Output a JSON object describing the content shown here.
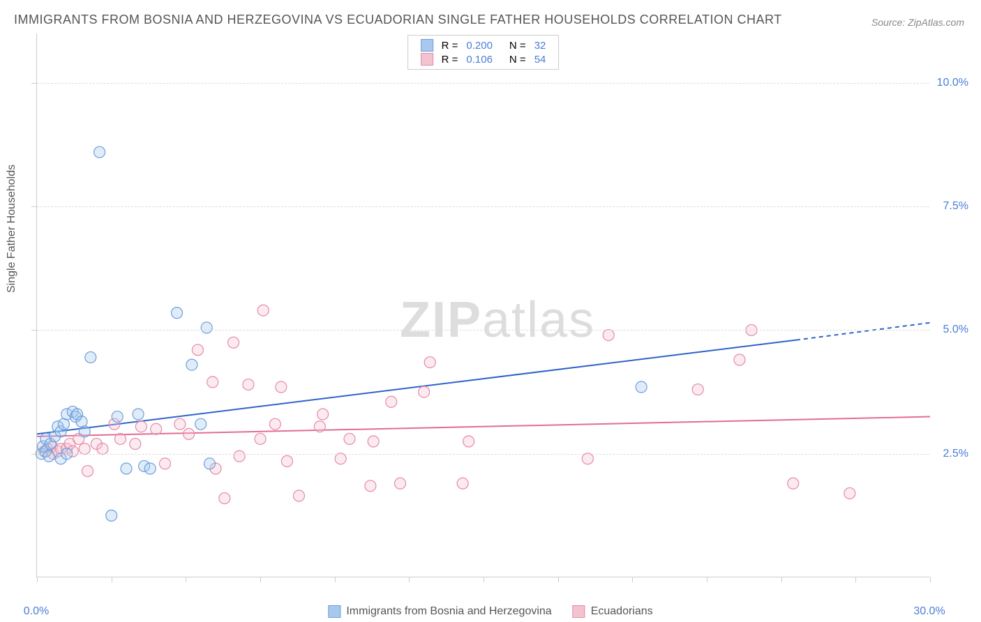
{
  "title": "IMMIGRANTS FROM BOSNIA AND HERZEGOVINA VS ECUADORIAN SINGLE FATHER HOUSEHOLDS CORRELATION CHART",
  "source": "Source: ZipAtlas.com",
  "y_axis_label": "Single Father Households",
  "watermark_bold": "ZIP",
  "watermark_light": "atlas",
  "chart": {
    "type": "scatter",
    "xlim": [
      0,
      30
    ],
    "ylim": [
      0,
      11
    ],
    "x_ticks": [
      0,
      2.5,
      5,
      7.5,
      10,
      12.5,
      15,
      17.5,
      20,
      22.5,
      25,
      27.5,
      30
    ],
    "x_tick_labels": {
      "0": "0.0%",
      "30": "30.0%"
    },
    "y_ticks": [
      2.5,
      5.0,
      7.5,
      10.0
    ],
    "y_tick_labels": {
      "2.5": "2.5%",
      "5.0": "5.0%",
      "7.5": "7.5%",
      "10.0": "10.0%"
    },
    "grid_color": "#dddddd",
    "axis_color": "#cccccc",
    "background_color": "#ffffff",
    "marker_radius": 8,
    "marker_stroke_width": 1.2,
    "marker_fill_opacity": 0.35,
    "line_width": 2
  },
  "series": [
    {
      "name": "Immigrants from Bosnia and Herzegovina",
      "color_fill": "#a9c8ed",
      "color_stroke": "#6b9fdd",
      "line_color": "#2e63c7",
      "r_label": "R =",
      "r_value": "0.200",
      "n_label": "N =",
      "n_value": "32",
      "trend": {
        "x1": 0,
        "y1": 2.9,
        "x2": 25.5,
        "y2": 4.8,
        "x3": 30,
        "y3": 5.15
      },
      "points": [
        [
          0.15,
          2.5
        ],
        [
          0.2,
          2.65
        ],
        [
          0.3,
          2.8
        ],
        [
          0.3,
          2.55
        ],
        [
          0.4,
          2.45
        ],
        [
          0.45,
          2.7
        ],
        [
          0.6,
          2.85
        ],
        [
          0.7,
          3.05
        ],
        [
          0.8,
          2.95
        ],
        [
          0.8,
          2.4
        ],
        [
          0.9,
          3.1
        ],
        [
          1.0,
          3.3
        ],
        [
          1.0,
          2.5
        ],
        [
          1.2,
          3.35
        ],
        [
          1.3,
          3.25
        ],
        [
          1.35,
          3.3
        ],
        [
          1.5,
          3.15
        ],
        [
          1.6,
          2.95
        ],
        [
          1.8,
          4.45
        ],
        [
          2.1,
          8.6
        ],
        [
          2.5,
          1.25
        ],
        [
          2.7,
          3.25
        ],
        [
          3.0,
          2.2
        ],
        [
          3.4,
          3.3
        ],
        [
          3.6,
          2.25
        ],
        [
          3.8,
          2.2
        ],
        [
          4.7,
          5.35
        ],
        [
          5.2,
          4.3
        ],
        [
          5.5,
          3.1
        ],
        [
          5.7,
          5.05
        ],
        [
          5.8,
          2.3
        ],
        [
          20.3,
          3.85
        ]
      ]
    },
    {
      "name": "Ecuadorians",
      "color_fill": "#f3c3d0",
      "color_stroke": "#e58aa6",
      "line_color": "#e16d90",
      "r_label": "R =",
      "r_value": "0.106",
      "n_label": "N =",
      "n_value": "54",
      "trend": {
        "x1": 0,
        "y1": 2.85,
        "x2": 30,
        "y2": 3.25,
        "x3": 30,
        "y3": 3.25
      },
      "points": [
        [
          0.25,
          2.55
        ],
        [
          0.35,
          2.6
        ],
        [
          0.5,
          2.65
        ],
        [
          0.55,
          2.5
        ],
        [
          0.7,
          2.55
        ],
        [
          0.8,
          2.6
        ],
        [
          1.0,
          2.6
        ],
        [
          1.1,
          2.7
        ],
        [
          1.2,
          2.55
        ],
        [
          1.4,
          2.8
        ],
        [
          1.6,
          2.6
        ],
        [
          1.7,
          2.15
        ],
        [
          2.0,
          2.7
        ],
        [
          2.2,
          2.6
        ],
        [
          2.6,
          3.1
        ],
        [
          2.8,
          2.8
        ],
        [
          3.3,
          2.7
        ],
        [
          3.5,
          3.05
        ],
        [
          4.0,
          3.0
        ],
        [
          4.3,
          2.3
        ],
        [
          4.8,
          3.1
        ],
        [
          5.1,
          2.9
        ],
        [
          5.4,
          4.6
        ],
        [
          5.9,
          3.95
        ],
        [
          6.0,
          2.2
        ],
        [
          6.3,
          1.6
        ],
        [
          6.6,
          4.75
        ],
        [
          6.8,
          2.45
        ],
        [
          7.1,
          3.9
        ],
        [
          7.5,
          2.8
        ],
        [
          7.6,
          5.4
        ],
        [
          8.0,
          3.1
        ],
        [
          8.2,
          3.85
        ],
        [
          8.4,
          2.35
        ],
        [
          8.8,
          1.65
        ],
        [
          9.5,
          3.05
        ],
        [
          9.6,
          3.3
        ],
        [
          10.2,
          2.4
        ],
        [
          10.5,
          2.8
        ],
        [
          11.2,
          1.85
        ],
        [
          11.3,
          2.75
        ],
        [
          11.9,
          3.55
        ],
        [
          12.2,
          1.9
        ],
        [
          13.0,
          3.75
        ],
        [
          13.2,
          4.35
        ],
        [
          14.3,
          1.9
        ],
        [
          14.5,
          2.75
        ],
        [
          18.5,
          2.4
        ],
        [
          19.2,
          4.9
        ],
        [
          22.2,
          3.8
        ],
        [
          23.6,
          4.4
        ],
        [
          24.0,
          5.0
        ],
        [
          25.4,
          1.9
        ],
        [
          27.3,
          1.7
        ]
      ]
    }
  ],
  "colors": {
    "title": "#555555",
    "source": "#888888",
    "axis_label": "#555555",
    "tick_label": "#4a7dd6",
    "legend_text": "#555555",
    "watermark": "#dddddd"
  },
  "fonts": {
    "title_size": 18,
    "tick_size": 16,
    "legend_size": 15,
    "watermark_size": 72
  }
}
